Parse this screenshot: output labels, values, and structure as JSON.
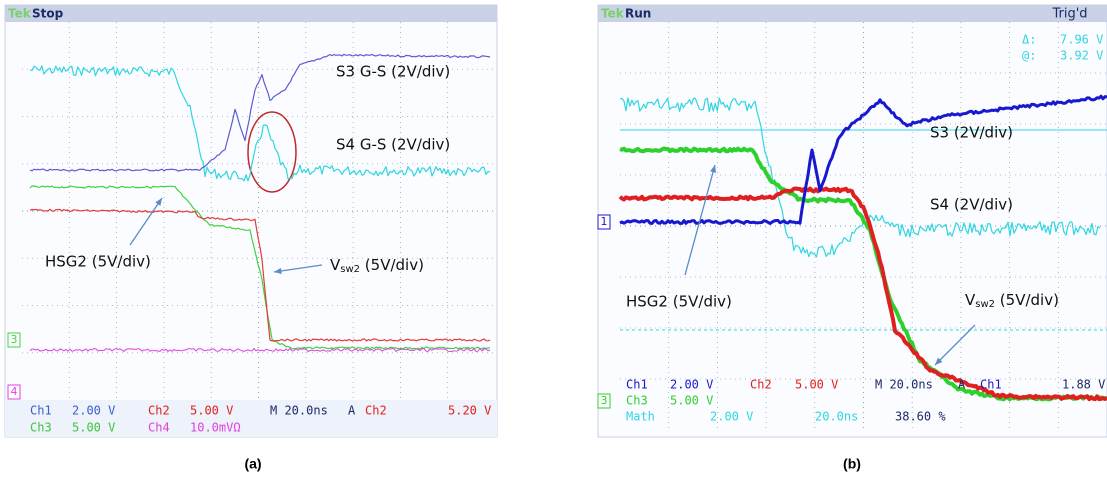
{
  "panels": [
    {
      "caption": "(a)",
      "logo": "Tek",
      "status": "Stop",
      "trace_labels": [
        "S3 G-S (2V/div)",
        "S4 G-S (2V/div)",
        "HSG2 (5V/div)"
      ],
      "vsw_label": {
        "main": "V",
        "sub": "sw2",
        "rest": " (5V/div)"
      },
      "channel_markers": [
        "3",
        "4"
      ],
      "readout": [
        [
          "Ch1",
          "2.00 V",
          "Ch2",
          "5.00 V",
          "M 20.0ns",
          "A",
          "Ch2",
          "5.20 V"
        ],
        [
          "Ch3",
          "5.00 V",
          "Ch4",
          "10.0mVΩ"
        ]
      ]
    },
    {
      "caption": "(b)",
      "logo": "Tek",
      "status": "Run",
      "trigger_state": "Trig'd",
      "cursor": [
        "Δ:",
        "7.96 V",
        "@:",
        "3.92 V"
      ],
      "trace_labels": [
        "S3 (2V/div)",
        "S4 (2V/div)",
        "HSG2 (5V/div)"
      ],
      "vsw_label": {
        "main": "V",
        "sub": "sw2",
        "rest": " (5V/div)"
      },
      "channel_markers": [
        "1",
        "3"
      ],
      "readout": [
        [
          "Ch1",
          "2.00 V",
          "Ch2",
          "5.00 V",
          "M 20.0ns",
          "A",
          "Ch1",
          "1.88 V"
        ],
        [
          "Ch3",
          "5.00 V"
        ],
        [
          "Math",
          "2.00 V",
          "20.0ns",
          "38.60 %"
        ]
      ]
    }
  ]
}
